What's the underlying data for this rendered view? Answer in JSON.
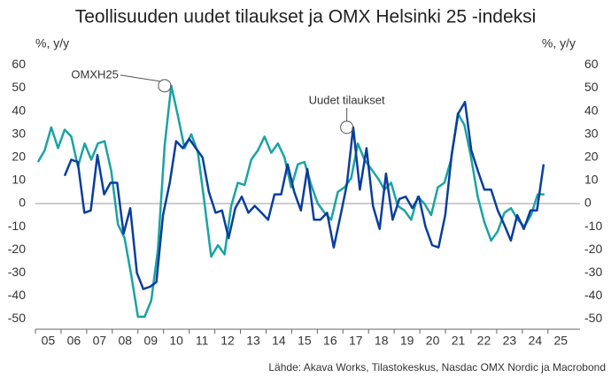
{
  "chart_data": {
    "type": "line",
    "title": "Teollisuuden uudet tilaukset ja OMX Helsinki 25 -indeksi",
    "ylabel": "%, y/y",
    "y2label": "%, y/y",
    "source": "Lähde: Akava Works, Tilastokeskus, Nasdac OMX Nordic ja Macrobond",
    "xlim": [
      2005,
      2026.25
    ],
    "xticks": [
      {
        "value": 2005.5,
        "label": "05"
      },
      {
        "value": 2006.5,
        "label": "06"
      },
      {
        "value": 2007.5,
        "label": "07"
      },
      {
        "value": 2008.5,
        "label": "08"
      },
      {
        "value": 2009.5,
        "label": "09"
      },
      {
        "value": 2010.5,
        "label": "10"
      },
      {
        "value": 2011.5,
        "label": "11"
      },
      {
        "value": 2012.5,
        "label": "12"
      },
      {
        "value": 2013.5,
        "label": "13"
      },
      {
        "value": 2014.5,
        "label": "14"
      },
      {
        "value": 2015.5,
        "label": "15"
      },
      {
        "value": 2016.5,
        "label": "16"
      },
      {
        "value": 2017.5,
        "label": "17"
      },
      {
        "value": 2018.5,
        "label": "18"
      },
      {
        "value": 2019.5,
        "label": "19"
      },
      {
        "value": 2020.5,
        "label": "20"
      },
      {
        "value": 2021.5,
        "label": "21"
      },
      {
        "value": 2022.5,
        "label": "22"
      },
      {
        "value": 2023.5,
        "label": "23"
      },
      {
        "value": 2024.5,
        "label": "24"
      },
      {
        "value": 2025.5,
        "label": "25"
      }
    ],
    "ylim": [
      -50,
      60
    ],
    "yticks": [
      60,
      50,
      40,
      30,
      20,
      10,
      0,
      -10,
      -20,
      -30,
      -40,
      -50
    ],
    "y2lim": [
      -50,
      60
    ],
    "y2ticks": [
      60,
      50,
      40,
      30,
      20,
      10,
      0,
      -10,
      -20,
      -30,
      -40,
      -50
    ],
    "series": [
      {
        "name": "OMXH25",
        "color": "#1aa3a3",
        "x": [
          2005.1,
          2005.36,
          2005.62,
          2005.88,
          2006.14,
          2006.4,
          2006.66,
          2006.92,
          2007.18,
          2007.44,
          2007.7,
          2007.96,
          2008.22,
          2008.48,
          2008.74,
          2009.0,
          2009.26,
          2009.52,
          2009.78,
          2010.04,
          2010.3,
          2010.56,
          2010.82,
          2011.08,
          2011.34,
          2011.6,
          2011.86,
          2012.12,
          2012.38,
          2012.64,
          2012.9,
          2013.16,
          2013.42,
          2013.68,
          2013.94,
          2014.2,
          2014.46,
          2014.72,
          2014.98,
          2015.24,
          2015.5,
          2015.76,
          2016.02,
          2016.28,
          2016.54,
          2016.8,
          2017.06,
          2017.32,
          2017.58,
          2017.84,
          2018.1,
          2018.36,
          2018.62,
          2018.88,
          2019.14,
          2019.4,
          2019.66,
          2019.92,
          2020.18,
          2020.44,
          2020.7,
          2020.96,
          2021.22,
          2021.48,
          2021.74,
          2022.0,
          2022.26,
          2022.52,
          2022.78,
          2023.04,
          2023.3,
          2023.56,
          2023.82,
          2024.08,
          2024.34,
          2024.6,
          2024.86
        ],
        "values": [
          18,
          23,
          33,
          24,
          32,
          29,
          16,
          26,
          19,
          26,
          27,
          14,
          -9,
          -15,
          -31,
          -49,
          -49,
          -42,
          -20,
          25,
          51,
          38,
          24,
          30,
          22,
          0,
          -23,
          -18,
          -22,
          -1,
          9,
          8,
          19,
          23,
          29,
          22,
          26,
          20,
          7,
          17,
          18,
          8,
          0,
          -4,
          -7,
          5,
          7,
          11,
          26,
          19,
          15,
          11,
          6,
          9,
          -1,
          -3,
          -7,
          3,
          0,
          -5,
          7,
          9,
          19,
          39,
          34,
          20,
          3,
          -8,
          -16,
          -12,
          -4,
          -2,
          -7,
          -10,
          -5,
          4,
          4
        ]
      },
      {
        "name": "Uudet tilaukset",
        "color": "#0a3d9e",
        "x": [
          2006.14,
          2006.4,
          2006.65,
          2006.91,
          2007.16,
          2007.42,
          2007.68,
          2007.93,
          2008.19,
          2008.44,
          2008.7,
          2008.96,
          2009.21,
          2009.47,
          2009.72,
          2009.98,
          2010.24,
          2010.49,
          2010.75,
          2011.0,
          2011.26,
          2011.52,
          2011.77,
          2012.03,
          2012.28,
          2012.54,
          2012.8,
          2013.05,
          2013.31,
          2013.56,
          2013.82,
          2014.08,
          2014.33,
          2014.59,
          2014.84,
          2015.1,
          2015.36,
          2015.61,
          2015.87,
          2016.12,
          2016.38,
          2016.64,
          2016.89,
          2017.15,
          2017.4,
          2017.66,
          2017.92,
          2018.17,
          2018.43,
          2018.68,
          2018.94,
          2019.2,
          2019.45,
          2019.71,
          2019.96,
          2020.22,
          2020.48,
          2020.73,
          2020.99,
          2021.24,
          2021.5,
          2021.76,
          2022.01,
          2022.27,
          2022.52,
          2022.78,
          2023.04,
          2023.29,
          2023.55,
          2023.8,
          2024.06,
          2024.32,
          2024.57,
          2024.83
        ],
        "values": [
          12,
          19,
          18,
          -4,
          -3,
          21,
          4,
          9,
          9,
          -13,
          -2,
          -30,
          -37,
          -36,
          -34,
          -5,
          9,
          27,
          24,
          28,
          24,
          20,
          5,
          -4,
          -3,
          -15,
          -2,
          3,
          -4,
          -1,
          -4,
          -7,
          4,
          4,
          17,
          5,
          -3,
          15,
          -7,
          -7,
          -4,
          -19,
          -6,
          8,
          33,
          6,
          24,
          -1,
          -11,
          13,
          -7,
          2,
          3,
          -2,
          3,
          -10,
          -18,
          -19,
          -5,
          21,
          39,
          44,
          23,
          14,
          6,
          6,
          -3,
          -9,
          -16,
          -5,
          -11,
          -3,
          -3,
          17
        ]
      }
    ],
    "annotations": [
      {
        "text": "OMXH25",
        "x": 2010.04,
        "y": 51
      },
      {
        "text": "Uudet tilaukset",
        "x": 2017.15,
        "y": 33
      }
    ]
  }
}
